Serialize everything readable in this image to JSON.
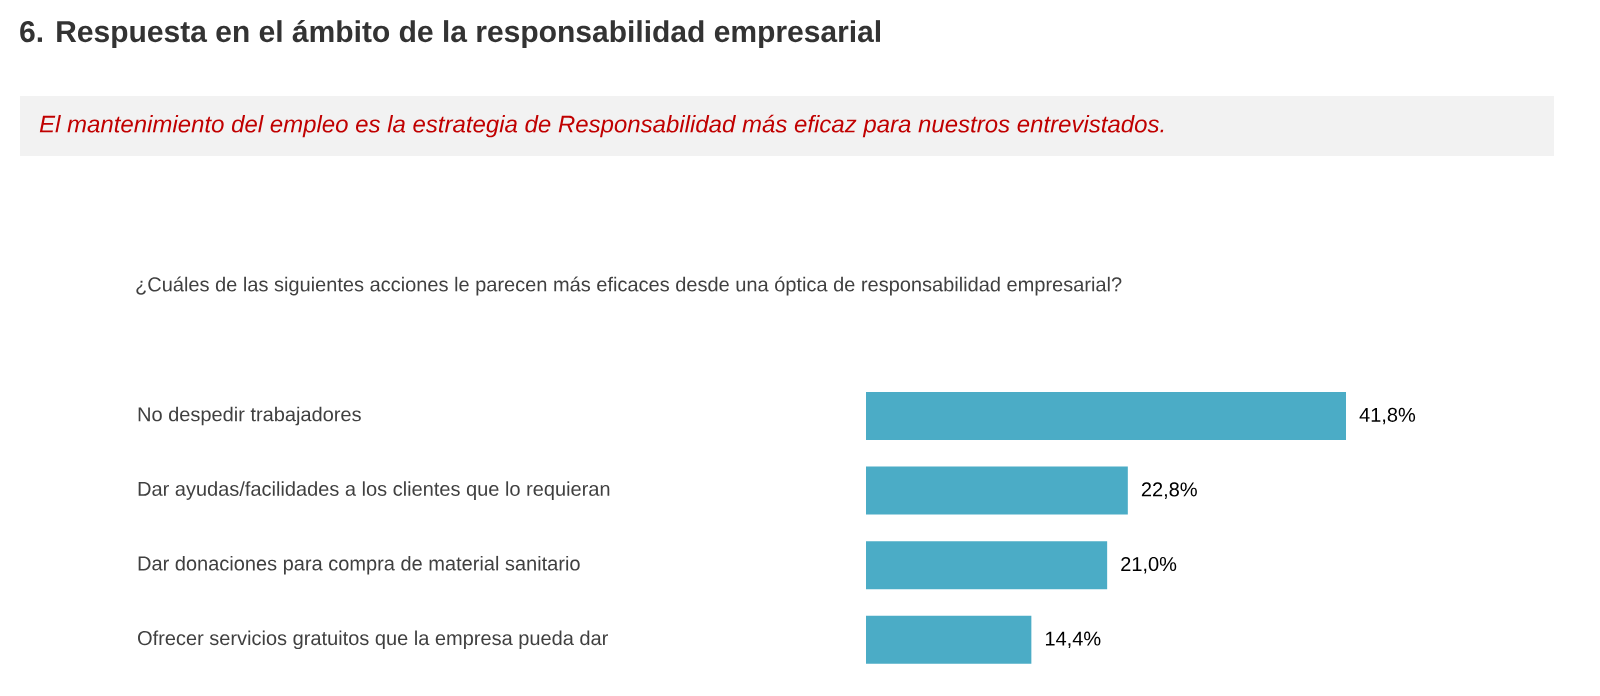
{
  "chart_data": {
    "type": "bar",
    "orientation": "horizontal",
    "title": "6. Respuesta en el ámbito de la responsabilidad empresarial",
    "subtitle": "El mantenimiento del empleo es la estrategia de Responsabilidad más eficaz para nuestros entrevistados.",
    "annotations": [
      "¿Cuáles de las siguientes acciones le parecen más eficaces desde una óptica de responsabilidad empresarial?"
    ],
    "categories": [
      "No despedir trabajadores",
      "Dar ayudas/facilidades a los clientes que lo requieran",
      "Dar donaciones para compra de material sanitario",
      "Ofrecer servicios gratuitos que la empresa pueda dar"
    ],
    "values": [
      41.8,
      22.8,
      21.0,
      14.4
    ],
    "value_labels": [
      "41,8%",
      "22,8%",
      "21,0%",
      "14,4%"
    ],
    "color": "#4bacc6"
  }
}
